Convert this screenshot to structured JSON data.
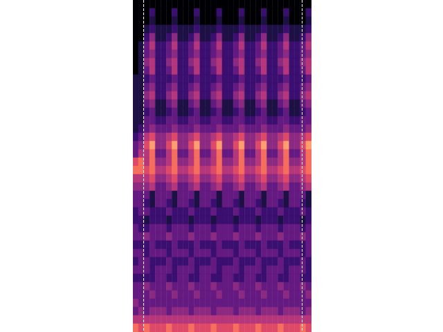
{
  "chart_data": {
    "type": "heatmap",
    "xlim": [
      0,
      32
    ],
    "ylim": [
      0,
      40
    ],
    "zlim": [
      0,
      9
    ],
    "tick_labels": false,
    "grid": false,
    "vlines": [
      1.9,
      30.3
    ],
    "cells": [
      [
        0,
        0,
        0,
        0,
        0,
        0,
        0,
        0,
        0,
        0,
        0,
        0,
        0,
        0,
        0,
        0,
        0,
        0,
        0,
        0,
        0,
        0,
        0,
        0,
        0,
        0,
        0,
        0,
        0,
        0,
        0,
        0
      ],
      [
        0,
        0,
        0,
        2,
        0,
        0,
        0,
        2,
        0,
        0,
        0,
        2,
        0,
        0,
        0,
        2,
        0,
        0,
        0,
        2,
        0,
        0,
        0,
        2,
        0,
        0,
        0,
        2,
        0,
        0,
        0,
        2
      ],
      [
        0,
        0,
        0,
        1,
        0,
        0,
        0,
        1,
        0,
        0,
        0,
        1,
        0,
        0,
        0,
        1,
        0,
        0,
        0,
        1,
        0,
        0,
        0,
        1,
        0,
        0,
        0,
        1,
        0,
        0,
        0,
        1
      ],
      [
        0,
        0,
        1,
        2,
        1,
        1,
        1,
        2,
        1,
        1,
        1,
        2,
        1,
        1,
        1,
        2,
        1,
        1,
        1,
        2,
        1,
        1,
        1,
        2,
        1,
        1,
        1,
        2,
        1,
        1,
        1,
        2
      ],
      [
        0,
        0,
        2,
        4,
        1,
        1,
        2,
        4,
        1,
        1,
        2,
        4,
        1,
        1,
        2,
        4,
        1,
        1,
        2,
        4,
        1,
        1,
        2,
        4,
        1,
        1,
        2,
        4,
        1,
        1,
        2,
        4
      ],
      [
        0,
        1,
        3,
        5,
        2,
        2,
        3,
        5,
        2,
        2,
        3,
        5,
        2,
        2,
        3,
        5,
        2,
        2,
        3,
        5,
        2,
        2,
        3,
        5,
        2,
        2,
        3,
        5,
        2,
        2,
        3,
        5
      ],
      [
        0,
        1,
        3,
        4,
        2,
        2,
        3,
        4,
        2,
        2,
        3,
        4,
        2,
        2,
        3,
        4,
        2,
        2,
        3,
        4,
        2,
        2,
        3,
        4,
        2,
        2,
        3,
        4,
        2,
        2,
        3,
        4
      ],
      [
        0,
        1,
        4,
        5,
        2,
        2,
        4,
        5,
        2,
        2,
        4,
        5,
        2,
        2,
        4,
        5,
        2,
        2,
        4,
        5,
        2,
        2,
        4,
        5,
        2,
        2,
        4,
        5,
        2,
        2,
        4,
        5
      ],
      [
        0,
        1,
        3,
        5,
        2,
        2,
        3,
        5,
        2,
        2,
        3,
        5,
        2,
        2,
        3,
        5,
        2,
        2,
        3,
        5,
        2,
        2,
        3,
        5,
        2,
        2,
        3,
        5,
        2,
        2,
        3,
        5
      ],
      [
        1,
        1,
        2,
        3,
        2,
        2,
        2,
        3,
        2,
        2,
        2,
        3,
        2,
        2,
        2,
        3,
        2,
        2,
        2,
        3,
        2,
        2,
        2,
        3,
        2,
        2,
        2,
        3,
        2,
        2,
        2,
        3
      ],
      [
        1,
        1,
        3,
        4,
        2,
        2,
        3,
        4,
        2,
        2,
        3,
        4,
        2,
        2,
        3,
        4,
        2,
        2,
        3,
        4,
        2,
        2,
        3,
        4,
        2,
        2,
        3,
        4,
        2,
        2,
        3,
        4
      ],
      [
        1,
        1,
        4,
        5,
        2,
        2,
        4,
        5,
        2,
        2,
        4,
        5,
        2,
        2,
        4,
        5,
        2,
        2,
        4,
        5,
        2,
        2,
        4,
        5,
        2,
        2,
        4,
        5,
        2,
        2,
        4,
        5
      ],
      [
        1,
        1,
        3,
        4,
        1,
        1,
        3,
        4,
        1,
        1,
        3,
        4,
        1,
        1,
        3,
        4,
        1,
        1,
        3,
        4,
        1,
        1,
        3,
        4,
        1,
        1,
        3,
        4,
        1,
        1,
        3,
        4
      ],
      [
        1,
        1,
        2,
        3,
        1,
        1,
        2,
        3,
        1,
        1,
        2,
        3,
        1,
        1,
        2,
        3,
        1,
        1,
        2,
        3,
        1,
        1,
        2,
        3,
        1,
        1,
        2,
        3,
        1,
        1,
        2,
        3
      ],
      [
        1,
        1,
        3,
        3,
        2,
        2,
        3,
        3,
        2,
        2,
        3,
        3,
        2,
        2,
        3,
        3,
        2,
        2,
        3,
        3,
        2,
        2,
        3,
        3,
        2,
        2,
        3,
        3,
        2,
        2,
        3,
        3
      ],
      [
        1,
        2,
        3,
        4,
        3,
        3,
        3,
        4,
        3,
        3,
        3,
        4,
        3,
        3,
        3,
        4,
        3,
        3,
        3,
        4,
        3,
        3,
        3,
        4,
        3,
        3,
        3,
        4,
        3,
        3,
        3,
        4
      ],
      [
        2,
        3,
        5,
        6,
        4,
        4,
        5,
        6,
        4,
        4,
        5,
        6,
        4,
        4,
        5,
        6,
        4,
        4,
        5,
        6,
        4,
        4,
        5,
        6,
        4,
        4,
        5,
        6,
        4,
        4,
        5,
        6
      ],
      [
        3,
        4,
        6,
        8,
        4,
        4,
        6,
        8,
        4,
        4,
        6,
        8,
        4,
        4,
        6,
        8,
        4,
        4,
        6,
        8,
        4,
        4,
        6,
        8,
        4,
        4,
        6,
        8,
        4,
        4,
        6,
        8
      ],
      [
        3,
        5,
        5,
        7,
        3,
        3,
        5,
        7,
        3,
        3,
        5,
        7,
        3,
        3,
        5,
        7,
        3,
        3,
        5,
        7,
        3,
        3,
        5,
        7,
        3,
        3,
        5,
        7,
        3,
        3,
        5,
        7
      ],
      [
        6,
        7,
        5,
        7,
        4,
        4,
        5,
        7,
        4,
        4,
        5,
        7,
        4,
        4,
        5,
        7,
        4,
        4,
        5,
        7,
        4,
        4,
        5,
        7,
        4,
        4,
        5,
        7,
        4,
        4,
        5,
        7
      ],
      [
        7,
        7,
        6,
        7,
        5,
        5,
        6,
        7,
        5,
        5,
        6,
        7,
        5,
        5,
        6,
        7,
        5,
        5,
        6,
        7,
        5,
        5,
        6,
        7,
        5,
        5,
        6,
        7,
        5,
        5,
        6,
        7
      ],
      [
        5,
        5,
        5,
        6,
        4,
        4,
        5,
        6,
        4,
        4,
        5,
        6,
        4,
        4,
        5,
        6,
        4,
        4,
        5,
        6,
        4,
        4,
        5,
        6,
        4,
        4,
        5,
        6,
        4,
        4,
        5,
        6
      ],
      [
        4,
        4,
        4,
        5,
        3,
        3,
        4,
        5,
        3,
        3,
        4,
        5,
        3,
        3,
        4,
        5,
        3,
        3,
        4,
        5,
        3,
        3,
        4,
        5,
        3,
        3,
        4,
        5,
        3,
        3,
        4,
        5
      ],
      [
        3,
        3,
        3,
        1,
        3,
        3,
        3,
        1,
        3,
        3,
        3,
        1,
        3,
        3,
        3,
        1,
        3,
        3,
        3,
        1,
        3,
        3,
        3,
        1,
        3,
        3,
        3,
        1,
        3,
        3,
        3,
        1
      ],
      [
        3,
        3,
        2,
        1,
        3,
        3,
        2,
        1,
        3,
        3,
        2,
        1,
        3,
        3,
        2,
        1,
        3,
        3,
        2,
        1,
        3,
        3,
        2,
        1,
        3,
        3,
        2,
        1,
        3,
        3,
        2,
        1
      ],
      [
        2,
        3,
        3,
        2,
        2,
        2,
        3,
        2,
        2,
        2,
        3,
        2,
        2,
        2,
        3,
        2,
        2,
        2,
        3,
        2,
        2,
        2,
        3,
        2,
        2,
        2,
        3,
        2,
        2,
        2,
        3,
        2
      ],
      [
        2,
        2,
        1,
        2,
        2,
        2,
        1,
        2,
        2,
        2,
        1,
        2,
        2,
        2,
        1,
        2,
        2,
        2,
        1,
        2,
        2,
        2,
        1,
        2,
        2,
        2,
        1,
        2,
        2,
        2,
        1,
        2
      ],
      [
        3,
        2,
        2,
        3,
        3,
        3,
        2,
        3,
        3,
        3,
        2,
        3,
        3,
        3,
        2,
        3,
        3,
        3,
        2,
        3,
        3,
        3,
        2,
        3,
        3,
        3,
        2,
        3,
        3,
        3,
        2,
        3
      ],
      [
        3,
        3,
        4,
        3,
        3,
        3,
        4,
        3,
        3,
        3,
        4,
        3,
        3,
        3,
        4,
        3,
        3,
        3,
        4,
        3,
        3,
        3,
        4,
        3,
        3,
        3,
        4,
        3,
        3,
        3,
        4,
        3
      ],
      [
        2,
        2,
        2,
        3,
        2,
        2,
        2,
        3,
        2,
        2,
        2,
        3,
        2,
        2,
        2,
        3,
        2,
        2,
        2,
        3,
        2,
        2,
        2,
        3,
        2,
        2,
        2,
        3,
        2,
        2,
        2,
        3
      ],
      [
        3,
        3,
        2,
        3,
        3,
        3,
        2,
        3,
        3,
        3,
        2,
        3,
        3,
        3,
        2,
        3,
        3,
        3,
        2,
        3,
        3,
        3,
        2,
        3,
        3,
        3,
        2,
        3,
        3,
        3,
        2,
        3
      ],
      [
        2,
        3,
        3,
        2,
        2,
        2,
        3,
        2,
        2,
        2,
        3,
        2,
        2,
        2,
        3,
        2,
        2,
        2,
        3,
        2,
        2,
        2,
        3,
        2,
        2,
        2,
        3,
        2,
        2,
        2,
        3,
        2
      ],
      [
        3,
        3,
        3,
        2,
        3,
        3,
        3,
        2,
        3,
        3,
        3,
        2,
        3,
        3,
        3,
        2,
        3,
        3,
        3,
        2,
        3,
        3,
        3,
        2,
        3,
        3,
        3,
        2,
        3,
        3,
        3,
        2
      ],
      [
        2,
        2,
        2,
        2,
        3,
        3,
        2,
        2,
        3,
        3,
        2,
        2,
        3,
        3,
        2,
        2,
        3,
        3,
        2,
        2,
        3,
        3,
        2,
        2,
        3,
        3,
        2,
        2,
        3,
        3,
        2,
        2
      ],
      [
        3,
        3,
        4,
        3,
        3,
        3,
        4,
        3,
        3,
        3,
        4,
        3,
        3,
        3,
        4,
        3,
        3,
        3,
        4,
        3,
        3,
        3,
        4,
        3,
        3,
        3,
        4,
        3,
        3,
        3,
        4,
        3
      ],
      [
        3,
        3,
        3,
        4,
        3,
        3,
        3,
        4,
        3,
        3,
        3,
        4,
        3,
        3,
        3,
        4,
        3,
        3,
        3,
        4,
        3,
        3,
        3,
        4,
        3,
        3,
        3,
        4,
        3,
        3,
        3,
        4
      ],
      [
        4,
        3,
        3,
        3,
        3,
        3,
        3,
        3,
        3,
        3,
        3,
        3,
        3,
        3,
        3,
        3,
        3,
        3,
        3,
        3,
        3,
        3,
        3,
        3,
        3,
        3,
        3,
        3,
        3,
        3,
        3,
        3
      ],
      [
        3,
        4,
        3,
        4,
        4,
        4,
        3,
        4,
        4,
        4,
        3,
        4,
        4,
        4,
        3,
        4,
        4,
        4,
        3,
        4,
        4,
        4,
        3,
        4,
        4,
        4,
        3,
        4,
        4,
        4,
        3,
        4
      ],
      [
        5,
        5,
        5,
        5,
        5,
        5,
        5,
        5,
        5,
        5,
        5,
        5,
        5,
        5,
        5,
        5,
        5,
        5,
        5,
        5,
        5,
        5,
        5,
        5,
        5,
        5,
        5,
        5,
        5,
        5,
        5,
        5
      ],
      [
        7,
        6,
        7,
        6,
        6,
        6,
        7,
        6,
        6,
        6,
        7,
        6,
        6,
        6,
        7,
        6,
        6,
        6,
        7,
        6,
        6,
        6,
        7,
        6,
        6,
        6,
        7,
        6,
        6,
        6,
        7,
        6
      ]
    ]
  }
}
